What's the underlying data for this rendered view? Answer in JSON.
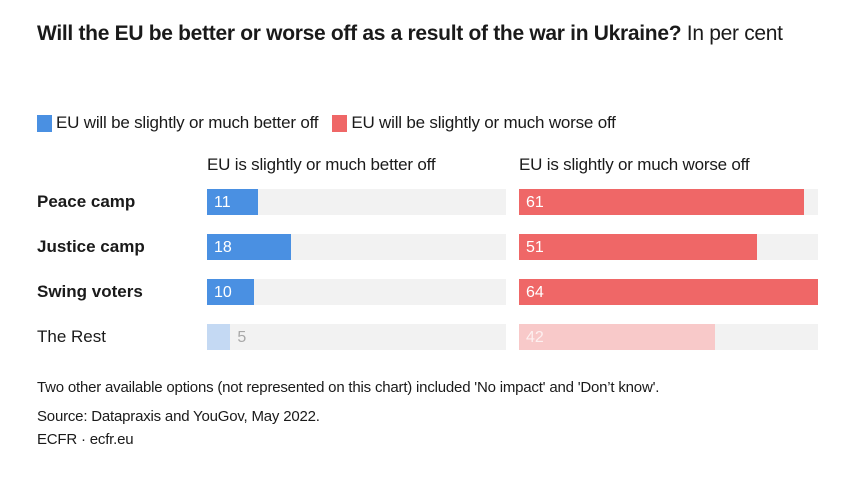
{
  "chart_data": {
    "type": "bar",
    "title_bold": "Will the EU be better or worse off as a result of the war in Ukraine?",
    "title_rest": " In per cent",
    "legend": [
      {
        "label": "EU will be slightly or much better off",
        "color": "#4a90e2"
      },
      {
        "label": "EU will be slightly or much worse off",
        "color": "#ef6767"
      }
    ],
    "panels": [
      {
        "header": "EU is slightly or much better off",
        "color": "#4a90e2",
        "faded_color": "#c4d9f3"
      },
      {
        "header": "EU is slightly or much worse off",
        "color": "#ef6767",
        "faded_color": "#f8c9c9"
      }
    ],
    "categories": [
      "Peace camp",
      "Justice camp",
      "Swing voters",
      "The Rest"
    ],
    "category_bold": [
      true,
      true,
      true,
      false
    ],
    "category_faded": [
      false,
      false,
      false,
      true
    ],
    "series": [
      {
        "name": "EU is slightly or much better off",
        "values": [
          11,
          18,
          10,
          5
        ]
      },
      {
        "name": "EU is slightly or much worse off",
        "values": [
          61,
          51,
          64,
          42
        ]
      }
    ],
    "xlim": [
      0,
      64
    ],
    "unit": "per cent"
  },
  "footer": {
    "note": "Two other available options (not represented on this chart) included 'No impact' and 'Don’t know'.",
    "source": "Source: Datapraxis and YouGov, May 2022.",
    "credit": "ECFR · ecfr.eu"
  }
}
